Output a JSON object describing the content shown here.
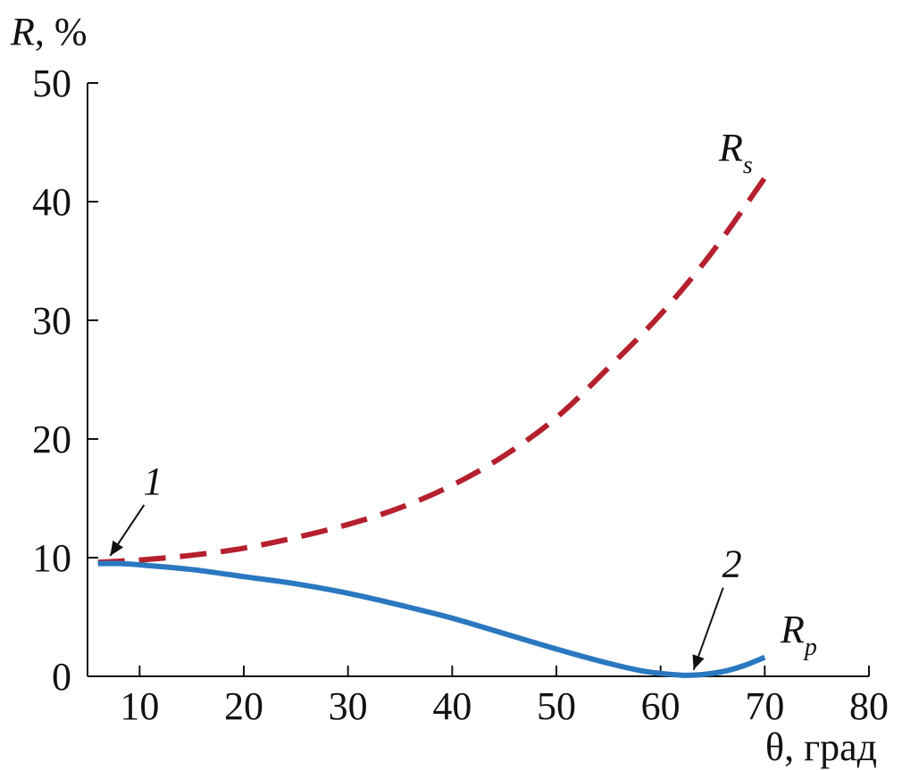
{
  "chart_data": {
    "type": "line",
    "title": "",
    "xlabel": "θ, град",
    "ylabel_main": "R",
    "ylabel_unit": ", %",
    "xlim": [
      5,
      80
    ],
    "ylim": [
      0,
      50
    ],
    "xticks": [
      10,
      20,
      30,
      40,
      50,
      60,
      70,
      80
    ],
    "yticks": [
      0,
      10,
      20,
      30,
      40,
      50
    ],
    "grid": false,
    "colors": {
      "Rs": "#b5202e",
      "Rp": "#2a78c0"
    },
    "series": [
      {
        "name": "Rs",
        "label_main": "R",
        "label_sub": "s",
        "style": "dashed",
        "x": [
          6,
          8,
          10,
          15,
          20,
          25,
          30,
          35,
          40,
          45,
          50,
          55,
          60,
          65,
          70
        ],
        "y": [
          9.6,
          9.7,
          9.8,
          10.2,
          10.8,
          11.7,
          12.8,
          14.2,
          16.1,
          18.6,
          21.8,
          26.0,
          30.5,
          35.8,
          42.0
        ]
      },
      {
        "name": "Rp",
        "label_main": "R",
        "label_sub": "p",
        "style": "solid",
        "x": [
          6,
          8,
          10,
          15,
          20,
          25,
          30,
          35,
          40,
          45,
          50,
          55,
          58,
          60,
          62,
          63,
          64,
          66,
          68,
          70
        ],
        "y": [
          9.5,
          9.5,
          9.4,
          9.0,
          8.4,
          7.8,
          7.0,
          6.0,
          4.9,
          3.6,
          2.3,
          1.1,
          0.5,
          0.25,
          0.1,
          0.1,
          0.15,
          0.4,
          0.9,
          1.6
        ]
      }
    ],
    "annotations": [
      {
        "text": "1",
        "x": 7,
        "y": 9.7
      },
      {
        "text": "2",
        "x": 63,
        "y": 0.1
      }
    ]
  }
}
